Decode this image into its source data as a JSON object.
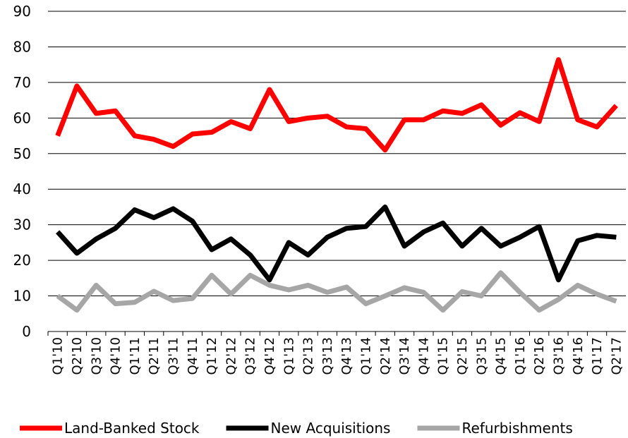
{
  "chart_data": {
    "type": "line",
    "categories": [
      "Q1'10",
      "Q2'10",
      "Q3'10",
      "Q4'10",
      "Q1'11",
      "Q2'11",
      "Q3'11",
      "Q4'11",
      "Q1'12",
      "Q2'12",
      "Q3'12",
      "Q4'12",
      "Q1'13",
      "Q2'13",
      "Q3'13",
      "Q4'13",
      "Q1'14",
      "Q2'14",
      "Q3'14",
      "Q4'14",
      "Q1'15",
      "Q2'15",
      "Q3'15",
      "Q4'15",
      "Q1'16",
      "Q2'16",
      "Q3'16",
      "Q4'16",
      "Q1'17",
      "Q2'17"
    ],
    "series": [
      {
        "name": "Land-Banked Stock",
        "color": "#ff0000",
        "values": [
          55,
          69,
          61.3,
          62,
          55,
          54,
          52,
          55.5,
          56,
          59,
          57,
          68,
          59,
          60,
          60.5,
          57.5,
          57,
          51,
          59.5,
          59.5,
          62,
          61.3,
          63.7,
          58,
          61.5,
          59,
          76.4,
          59.5,
          57.5,
          63.5
        ]
      },
      {
        "name": "New Acquisitions",
        "color": "#000000",
        "values": [
          28,
          22,
          26,
          29,
          34.2,
          32,
          34.5,
          31,
          23,
          26,
          21.5,
          14.5,
          25,
          21.5,
          26.5,
          29,
          29.5,
          35,
          24,
          28,
          30.5,
          24,
          29,
          24,
          26.5,
          29.5,
          14.5,
          25.5,
          27,
          26.5
        ]
      },
      {
        "name": "Refurbishments",
        "color": "#a6a6a6",
        "values": [
          10,
          6,
          13,
          7.8,
          8.2,
          11.3,
          8.7,
          9.3,
          15.8,
          10.5,
          15.8,
          13,
          11.7,
          13,
          11,
          12.5,
          7.8,
          10,
          12.3,
          11,
          6,
          11.2,
          10,
          16.5,
          11,
          6,
          9,
          13,
          10.5,
          8.5
        ]
      }
    ],
    "ylim": [
      0,
      90
    ],
    "yticks": [
      0,
      10,
      20,
      30,
      40,
      50,
      60,
      70,
      80,
      90
    ],
    "grid": true,
    "legend": "bottom"
  }
}
